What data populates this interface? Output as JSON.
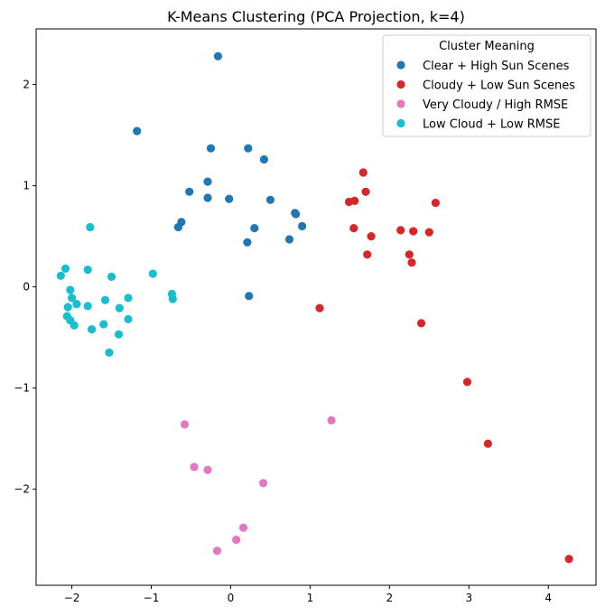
{
  "chart_data": {
    "type": "scatter",
    "title": "K-Means Clustering (PCA Projection, k=4)",
    "xlabel": "",
    "ylabel": "",
    "xlim": [
      -2.45,
      4.6
    ],
    "ylim": [
      -2.95,
      2.55
    ],
    "xticks": [
      -2,
      -1,
      0,
      1,
      2,
      3,
      4
    ],
    "yticks": [
      -2,
      -1,
      0,
      1,
      2
    ],
    "grid": false,
    "legend": {
      "title": "Cluster Meaning",
      "placement": "top-right"
    },
    "series": [
      {
        "name": "Clear + High Sun Scenes",
        "color": "#1f77b4",
        "points": [
          [
            -0.16,
            2.28
          ],
          [
            -1.18,
            1.54
          ],
          [
            -0.25,
            1.37
          ],
          [
            0.22,
            1.37
          ],
          [
            0.42,
            1.26
          ],
          [
            -0.29,
            1.04
          ],
          [
            -0.52,
            0.94
          ],
          [
            -0.29,
            0.88
          ],
          [
            -0.02,
            0.87
          ],
          [
            0.5,
            0.86
          ],
          [
            0.81,
            0.73
          ],
          [
            0.82,
            0.72
          ],
          [
            -0.62,
            0.64
          ],
          [
            -0.66,
            0.59
          ],
          [
            0.3,
            0.58
          ],
          [
            0.9,
            0.6
          ],
          [
            0.74,
            0.47
          ],
          [
            0.21,
            0.44
          ],
          [
            0.23,
            -0.09
          ]
        ]
      },
      {
        "name": "Cloudy + Low Sun Scenes",
        "color": "#d62728",
        "points": [
          [
            1.67,
            1.13
          ],
          [
            1.7,
            0.94
          ],
          [
            1.49,
            0.84
          ],
          [
            1.56,
            0.85
          ],
          [
            2.58,
            0.83
          ],
          [
            1.55,
            0.58
          ],
          [
            2.14,
            0.56
          ],
          [
            2.3,
            0.55
          ],
          [
            2.5,
            0.54
          ],
          [
            1.77,
            0.5
          ],
          [
            1.72,
            0.32
          ],
          [
            2.25,
            0.32
          ],
          [
            2.28,
            0.24
          ],
          [
            1.12,
            -0.21
          ],
          [
            2.4,
            -0.36
          ],
          [
            2.98,
            -0.94
          ],
          [
            3.24,
            -1.55
          ],
          [
            4.26,
            -2.69
          ]
        ]
      },
      {
        "name": "Very Cloudy / High RMSE",
        "color": "#e377c2",
        "points": [
          [
            -0.58,
            -1.36
          ],
          [
            1.27,
            -1.32
          ],
          [
            -0.46,
            -1.78
          ],
          [
            -0.29,
            -1.81
          ],
          [
            0.41,
            -1.94
          ],
          [
            0.16,
            -2.38
          ],
          [
            0.07,
            -2.5
          ],
          [
            -0.17,
            -2.61
          ]
        ]
      },
      {
        "name": "Low Cloud + Low RMSE",
        "color": "#17becf",
        "points": [
          [
            -1.77,
            0.59
          ],
          [
            -2.08,
            0.18
          ],
          [
            -1.8,
            0.17
          ],
          [
            -2.14,
            0.11
          ],
          [
            -1.5,
            0.1
          ],
          [
            -0.98,
            0.13
          ],
          [
            -2.02,
            -0.03
          ],
          [
            -0.74,
            -0.07
          ],
          [
            -0.73,
            -0.12
          ],
          [
            -2.0,
            -0.11
          ],
          [
            -1.58,
            -0.13
          ],
          [
            -1.29,
            -0.11
          ],
          [
            -1.94,
            -0.17
          ],
          [
            -2.05,
            -0.2
          ],
          [
            -1.8,
            -0.19
          ],
          [
            -1.4,
            -0.21
          ],
          [
            -2.06,
            -0.29
          ],
          [
            -2.02,
            -0.33
          ],
          [
            -1.29,
            -0.32
          ],
          [
            -1.97,
            -0.38
          ],
          [
            -1.6,
            -0.37
          ],
          [
            -1.75,
            -0.42
          ],
          [
            -1.41,
            -0.47
          ],
          [
            -1.53,
            -0.65
          ]
        ]
      }
    ]
  }
}
